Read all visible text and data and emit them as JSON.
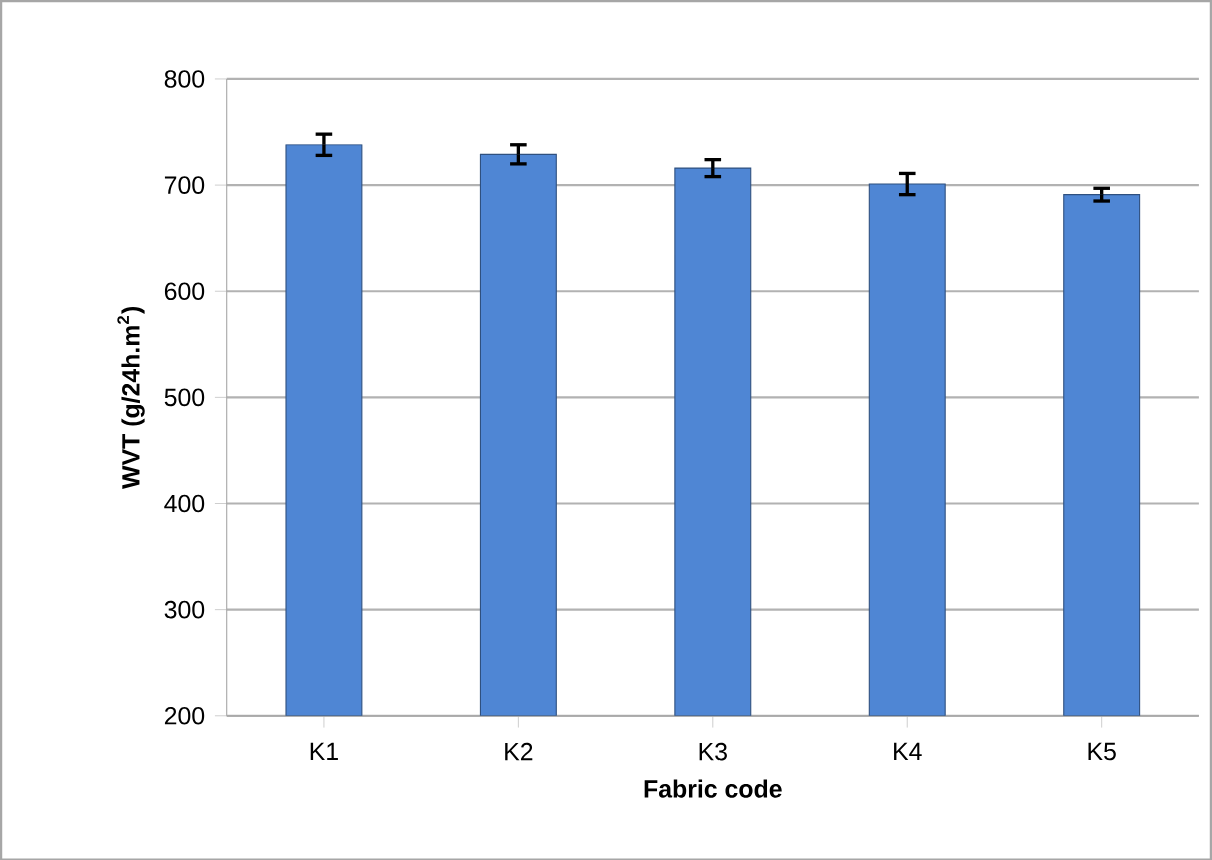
{
  "chart_data": {
    "type": "bar",
    "xlabel": "Fabric code",
    "ylabel": "WVT (g/24h.m$^{2}$)",
    "categories": [
      "K1",
      "K2",
      "K3",
      "K4",
      "K5"
    ],
    "values": [
      738,
      729,
      716,
      701,
      691
    ],
    "errors": [
      10,
      9,
      8,
      10,
      6
    ],
    "color": "#4f86d4",
    "ylim": [
      200,
      800
    ],
    "yticks": [
      200,
      300,
      400,
      500,
      600,
      700,
      800
    ],
    "grid": "y"
  }
}
